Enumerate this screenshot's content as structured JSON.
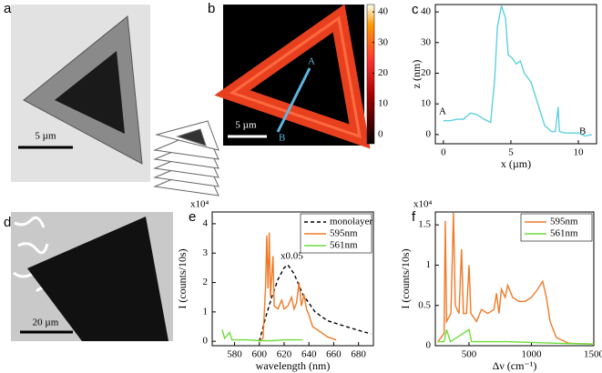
{
  "figure": {
    "panels": [
      {
        "label": "a",
        "scale_bar": "5 µm"
      },
      {
        "label": "b",
        "scale_bar": "5 µm",
        "markers": [
          "A",
          "B"
        ]
      },
      {
        "label": "d",
        "scale_bar": "20 µm"
      }
    ],
    "colorbar": {
      "lim": [
        -3,
        42.4
      ],
      "ticks": [
        0,
        10,
        20,
        30,
        40
      ]
    }
  },
  "chart_data": [
    {
      "type": "line",
      "panel": "c",
      "xlabel": "x (µm)",
      "ylabel": "z (nm)",
      "xlim": [
        -0.6,
        11.35
      ],
      "ylim": [
        -3,
        42.4
      ],
      "xticks": [
        0,
        5,
        10
      ],
      "yticks": [
        0,
        10,
        20,
        30,
        40
      ],
      "annotations": [
        "A",
        "B"
      ],
      "series": [
        {
          "color": "#5fd0dc",
          "x": [
            0,
            0.5,
            1,
            1.5,
            2,
            2.5,
            3,
            3.5,
            3.8,
            4,
            4.3,
            4.6,
            4.8,
            5.1,
            5.4,
            5.7,
            6,
            6.5,
            7,
            7.5,
            8,
            8.3,
            8.5,
            8.6,
            9,
            10,
            10.5,
            11
          ],
          "values": [
            4.5,
            4.5,
            5,
            5,
            7,
            6.5,
            5,
            4,
            18,
            35,
            42,
            38,
            26,
            25,
            23,
            24,
            20,
            17,
            10,
            3,
            1,
            1,
            9,
            1,
            0.5,
            0.5,
            -0.5,
            0
          ]
        }
      ]
    },
    {
      "type": "line",
      "panel": "e",
      "xlabel": "wavelength (nm)",
      "ylabel": "I (counts/10s)",
      "y_multiplier": "x10⁴",
      "xlim": [
        562,
        692
      ],
      "ylim": [
        -0.15,
        4.4
      ],
      "xticks": [
        580,
        600,
        620,
        640,
        660,
        680
      ],
      "yticks": [
        0,
        1,
        2,
        3,
        4
      ],
      "legend": "upper right",
      "annotations": [
        "x0.05"
      ],
      "series": [
        {
          "name": "monolayer",
          "color": "#000000",
          "dashed": true,
          "x": [
            600,
            605,
            610,
            615,
            620,
            623,
            628,
            635,
            645,
            655,
            670,
            690
          ],
          "values": [
            0,
            0.8,
            1.5,
            2.1,
            2.5,
            2.6,
            2.3,
            1.6,
            1.0,
            0.7,
            0.5,
            0.25
          ]
        },
        {
          "name": "595nm",
          "color": "#f07a28",
          "x": [
            600,
            603,
            605,
            606,
            607,
            608,
            609,
            611,
            612,
            615,
            618,
            620,
            623,
            626,
            628,
            630,
            632,
            634,
            636,
            638,
            640,
            643,
            650,
            655,
            662
          ],
          "values": [
            0,
            0.1,
            1.8,
            3.6,
            1.8,
            3.7,
            1.5,
            2.9,
            1.2,
            1.1,
            1.4,
            1.1,
            1.2,
            1.5,
            1.1,
            1.3,
            2.0,
            1.2,
            1.6,
            1.1,
            0.9,
            0.5,
            0.3,
            0.15,
            0.05
          ]
        },
        {
          "name": "561nm",
          "color": "#6ddc3a",
          "x": [
            570,
            572,
            576,
            578,
            590,
            600,
            610,
            620,
            635
          ],
          "values": [
            0.4,
            0.1,
            0.3,
            0.05,
            0.05,
            0.02,
            0.02,
            0.05,
            0.05
          ]
        }
      ]
    },
    {
      "type": "line",
      "panel": "f",
      "xlabel": "Δν (cm⁻¹)",
      "ylabel": "I (counts/10s)",
      "y_multiplier": "x10⁴",
      "xlim": [
        230,
        1500
      ],
      "ylim": [
        0,
        1.66
      ],
      "xticks": [
        500,
        1000,
        1500
      ],
      "yticks": [
        0,
        0.5,
        1,
        1.5
      ],
      "legend": "upper right",
      "series": [
        {
          "name": "595nm",
          "color": "#f07a28",
          "x": [
            250,
            300,
            310,
            320,
            355,
            375,
            390,
            420,
            440,
            455,
            480,
            500,
            515,
            560,
            600,
            650,
            700,
            720,
            740,
            760,
            790,
            810,
            850,
            900,
            950,
            1000,
            1050,
            1090,
            1120,
            1150,
            1200,
            1300,
            1500
          ],
          "values": [
            0.05,
            0.15,
            1.55,
            0.3,
            0.4,
            1.65,
            0.5,
            0.4,
            1.2,
            0.4,
            0.4,
            1.0,
            0.4,
            0.3,
            0.45,
            0.4,
            0.45,
            0.65,
            0.4,
            0.7,
            0.6,
            0.75,
            0.6,
            0.55,
            0.55,
            0.6,
            0.7,
            0.8,
            0.6,
            0.3,
            0.1,
            0.03,
            0.02
          ]
        },
        {
          "name": "561nm",
          "color": "#6ddc3a",
          "x": [
            250,
            300,
            320,
            350,
            500,
            520,
            800,
            1200,
            1500
          ],
          "values": [
            0.05,
            0.05,
            0.2,
            0.05,
            0.2,
            0.05,
            0.05,
            0.03,
            0.02
          ]
        }
      ]
    }
  ]
}
